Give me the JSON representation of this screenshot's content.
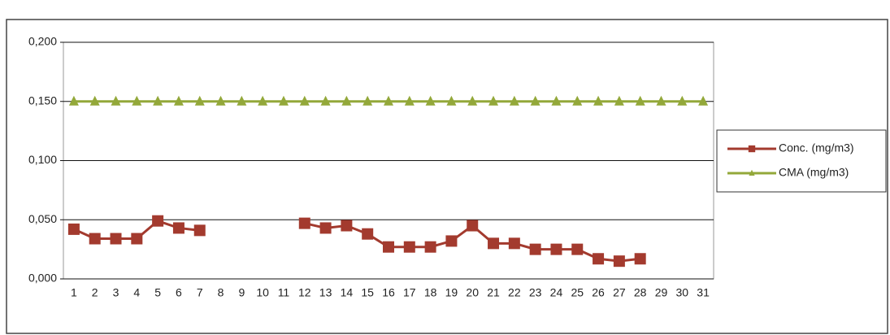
{
  "chart_data": {
    "type": "line",
    "categories": [
      "1",
      "2",
      "3",
      "4",
      "5",
      "6",
      "7",
      "8",
      "9",
      "10",
      "11",
      "12",
      "13",
      "14",
      "15",
      "16",
      "17",
      "18",
      "19",
      "20",
      "21",
      "22",
      "23",
      "24",
      "25",
      "26",
      "27",
      "28",
      "29",
      "30",
      "31"
    ],
    "series": [
      {
        "name": "Conc. (mg/m3)",
        "color": "#a33a2e",
        "marker": "square",
        "values": [
          0.042,
          0.034,
          0.034,
          0.034,
          0.049,
          0.043,
          0.041,
          null,
          null,
          null,
          null,
          0.047,
          0.043,
          0.045,
          0.038,
          0.027,
          0.027,
          0.027,
          0.032,
          0.045,
          0.03,
          0.03,
          0.025,
          0.025,
          0.025,
          0.017,
          0.015,
          0.017,
          null,
          null,
          null
        ]
      },
      {
        "name": "CMA (mg/m3)",
        "color": "#93a83a",
        "marker": "triangle",
        "values": [
          0.15,
          0.15,
          0.15,
          0.15,
          0.15,
          0.15,
          0.15,
          0.15,
          0.15,
          0.15,
          0.15,
          0.15,
          0.15,
          0.15,
          0.15,
          0.15,
          0.15,
          0.15,
          0.15,
          0.15,
          0.15,
          0.15,
          0.15,
          0.15,
          0.15,
          0.15,
          0.15,
          0.15,
          0.15,
          0.15,
          0.15
        ]
      }
    ],
    "ylim": [
      0,
      0.2
    ],
    "yticks": [
      {
        "value": 0,
        "label": "0,000"
      },
      {
        "value": 0.05,
        "label": "0,050"
      },
      {
        "value": 0.1,
        "label": "0,100"
      },
      {
        "value": 0.15,
        "label": "0,150"
      },
      {
        "value": 0.2,
        "label": "0,200"
      }
    ],
    "grid": true,
    "legend": "right"
  }
}
